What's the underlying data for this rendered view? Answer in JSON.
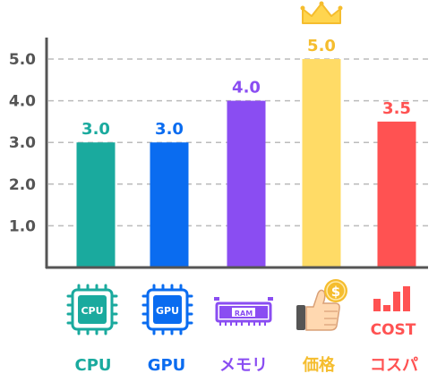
{
  "chart_data": {
    "type": "bar",
    "categories": [
      "CPU",
      "GPU",
      "メモリ",
      "価格",
      "コスパ"
    ],
    "values": [
      3.0,
      3.0,
      4.0,
      5.0,
      3.5
    ],
    "value_labels": [
      "3.0",
      "3.0",
      "4.0",
      "5.0",
      "3.5"
    ],
    "colors": [
      "#1aaa9e",
      "#0a6cf0",
      "#8a4df2",
      "#ffdb66",
      "#ff5252"
    ],
    "label_colors": [
      "#1aaa9e",
      "#0a6cf0",
      "#8a4df2",
      "#f5bd2e",
      "#ff5252"
    ],
    "yticks": [
      "1.0",
      "2.0",
      "3.0",
      "4.0",
      "5.0"
    ],
    "ylim": [
      0,
      5.5
    ],
    "grid": true,
    "title": "",
    "xlabel": "",
    "ylabel": ""
  },
  "icons": {
    "cpu": {
      "text": "CPU",
      "name": "cpu-chip-icon"
    },
    "gpu": {
      "text": "GPU",
      "name": "gpu-chip-icon"
    },
    "ram": {
      "text": "RAM",
      "name": "ram-module-icon"
    },
    "price": {
      "text": "$",
      "name": "thumbs-up-coin-icon"
    },
    "cost": {
      "text": "COST",
      "name": "cost-bars-icon"
    },
    "crown": {
      "name": "crown-icon"
    }
  }
}
